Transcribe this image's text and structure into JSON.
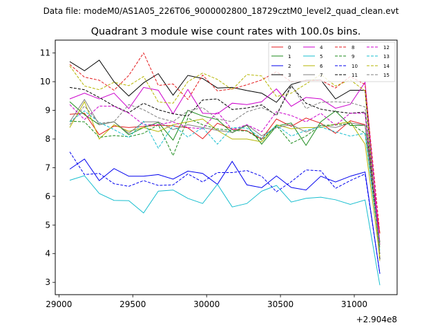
{
  "chart_data": {
    "type": "line",
    "suptitle": "Data file: modeM0/AS1A05_226T06_9000002800_18729cztM0_level2_quad_clean.evt",
    "title": "Quadrant 3 module wise count rates with 100.0s bins.",
    "xlabel": "",
    "ylabel": "",
    "offset_label": "+2.904e8",
    "xlim": [
      28975,
      31290
    ],
    "ylim": [
      2.57,
      11.45
    ],
    "xticks": [
      29000,
      29500,
      30000,
      30500,
      31000
    ],
    "xtick_labels": [
      "29000",
      "29500",
      "30000",
      "30500",
      "31000"
    ],
    "yticks": [
      3,
      4,
      5,
      6,
      7,
      8,
      9,
      10,
      11
    ],
    "ytick_labels": [
      "3",
      "4",
      "5",
      "6",
      "7",
      "8",
      "9",
      "10",
      "11"
    ],
    "grid": false,
    "legend_position": "top-right",
    "legend_columns": 4,
    "x": [
      29073,
      29173,
      29273,
      29373,
      29473,
      29573,
      29673,
      29773,
      29873,
      29973,
      30073,
      30173,
      30273,
      30373,
      30473,
      30573,
      30673,
      30773,
      30873,
      30973,
      31073,
      31173
    ],
    "series": [
      {
        "name": "0",
        "color": "#e41a1c",
        "dash": "solid",
        "values": [
          8.86,
          8.9,
          8.15,
          8.45,
          8.4,
          8.44,
          8.48,
          8.46,
          8.39,
          8.01,
          8.55,
          8.35,
          8.29,
          8.0,
          8.7,
          8.44,
          8.73,
          8.55,
          8.2,
          8.64,
          8.5,
          4.7
        ]
      },
      {
        "name": "1",
        "color": "#1a8a1a",
        "dash": "solid",
        "values": [
          9.3,
          8.85,
          8.5,
          8.6,
          8.15,
          8.4,
          8.58,
          7.96,
          9.0,
          8.8,
          8.68,
          8.22,
          8.48,
          7.82,
          8.45,
          8.56,
          7.78,
          8.6,
          8.98,
          8.47,
          8.48,
          4.4
        ]
      },
      {
        "name": "2",
        "color": "#0000ee",
        "dash": "solid",
        "values": [
          6.95,
          7.3,
          6.55,
          6.97,
          6.7,
          6.7,
          6.76,
          6.6,
          6.88,
          6.8,
          6.42,
          7.22,
          6.4,
          6.3,
          6.71,
          6.31,
          6.22,
          6.7,
          6.5,
          6.7,
          6.85,
          3.3
        ]
      },
      {
        "name": "3",
        "color": "#000000",
        "dash": "solid",
        "values": [
          10.7,
          10.38,
          10.75,
          10.0,
          9.5,
          9.96,
          10.28,
          9.53,
          10.22,
          10.11,
          9.78,
          9.8,
          9.69,
          9.6,
          9.28,
          9.9,
          10.05,
          10.06,
          9.4,
          9.7,
          9.7,
          3.8
        ]
      },
      {
        "name": "4",
        "color": "#cc00cc",
        "dash": "solid",
        "values": [
          9.4,
          9.6,
          9.4,
          9.6,
          9.06,
          9.8,
          9.7,
          8.88,
          9.73,
          8.9,
          8.88,
          9.25,
          9.2,
          9.3,
          9.75,
          9.14,
          9.45,
          9.4,
          9.07,
          9.21,
          9.98,
          4.3
        ]
      },
      {
        "name": "5",
        "color": "#17becf",
        "dash": "solid",
        "values": [
          6.56,
          6.72,
          6.1,
          5.86,
          5.85,
          5.42,
          6.18,
          6.22,
          5.93,
          5.75,
          6.42,
          5.63,
          5.75,
          6.18,
          6.38,
          5.8,
          5.93,
          5.97,
          5.88,
          5.72,
          5.87,
          2.9
        ]
      },
      {
        "name": "6",
        "color": "#b5b500",
        "dash": "solid",
        "values": [
          8.4,
          9.3,
          8.0,
          8.5,
          8.27,
          8.4,
          8.26,
          8.5,
          8.6,
          8.7,
          8.3,
          8.0,
          8.0,
          7.9,
          8.5,
          8.36,
          8.4,
          8.4,
          8.52,
          8.6,
          7.82,
          3.9
        ]
      },
      {
        "name": "7",
        "color": "#7f7f7f",
        "dash": "solid",
        "values": [
          8.6,
          9.38,
          8.5,
          8.6,
          8.2,
          8.6,
          8.6,
          8.33,
          8.5,
          8.4,
          8.3,
          8.23,
          8.5,
          8.11,
          8.4,
          8.5,
          8.24,
          8.48,
          8.4,
          8.56,
          8.48,
          4.3
        ]
      },
      {
        "name": "8",
        "color": "#e41a1c",
        "dash": "dashed",
        "values": [
          10.6,
          10.16,
          10.05,
          9.7,
          10.22,
          11.0,
          9.87,
          9.92,
          9.38,
          10.23,
          9.68,
          9.75,
          9.89,
          10.06,
          10.35,
          10.0,
          10.03,
          10.05,
          9.78,
          10.18,
          9.9,
          4.7
        ]
      },
      {
        "name": "9",
        "color": "#1a8a1a",
        "dash": "dashed",
        "values": [
          8.62,
          8.6,
          8.06,
          8.12,
          8.08,
          8.2,
          8.5,
          7.42,
          8.73,
          8.5,
          8.35,
          8.3,
          8.28,
          7.96,
          8.47,
          7.85,
          8.1,
          8.48,
          8.49,
          8.54,
          8.2,
          4.2
        ]
      },
      {
        "name": "10",
        "color": "#0000ee",
        "dash": "dashed",
        "values": [
          7.55,
          6.76,
          6.8,
          6.44,
          6.35,
          6.55,
          6.38,
          6.4,
          6.78,
          6.5,
          6.83,
          6.83,
          6.9,
          6.7,
          6.16,
          6.51,
          6.92,
          6.89,
          6.28,
          6.55,
          6.78,
          3.3
        ]
      },
      {
        "name": "11",
        "color": "#000000",
        "dash": "dashed",
        "values": [
          9.8,
          9.72,
          9.45,
          9.15,
          8.92,
          9.25,
          9.02,
          8.88,
          8.8,
          9.36,
          9.4,
          9.03,
          9.08,
          9.19,
          8.82,
          9.85,
          9.25,
          9.04,
          8.96,
          8.9,
          8.94,
          4.0
        ]
      },
      {
        "name": "12",
        "color": "#cc00cc",
        "dash": "dashed",
        "values": [
          9.2,
          8.68,
          9.15,
          9.14,
          8.9,
          8.5,
          8.5,
          8.6,
          8.4,
          8.36,
          8.95,
          8.32,
          8.5,
          8.25,
          8.95,
          8.82,
          8.6,
          8.9,
          8.48,
          8.9,
          8.9,
          4.4
        ]
      },
      {
        "name": "13",
        "color": "#17becf",
        "dash": "dashed",
        "values": [
          8.6,
          8.98,
          8.58,
          8.33,
          8.05,
          8.62,
          7.68,
          8.47,
          8.07,
          8.4,
          7.82,
          8.4,
          8.38,
          8.02,
          8.48,
          8.1,
          8.3,
          8.42,
          8.25,
          8.1,
          8.2,
          4.1
        ]
      },
      {
        "name": "14",
        "color": "#b5b500",
        "dash": "dashed",
        "values": [
          10.55,
          9.85,
          9.72,
          9.98,
          9.86,
          10.18,
          9.29,
          9.25,
          10.0,
          10.3,
          10.08,
          9.72,
          10.25,
          10.2,
          9.48,
          9.6,
          9.92,
          10.25,
          9.85,
          10.06,
          9.68,
          3.7
        ]
      },
      {
        "name": "15",
        "color": "#7f7f7f",
        "dash": "dashed",
        "values": [
          8.5,
          9.15,
          8.55,
          8.6,
          9.2,
          9.02,
          8.74,
          8.61,
          8.98,
          9.1,
          8.7,
          8.6,
          8.95,
          9.1,
          8.85,
          9.9,
          9.06,
          9.28,
          9.3,
          9.27,
          9.12,
          4.0
        ]
      }
    ]
  }
}
